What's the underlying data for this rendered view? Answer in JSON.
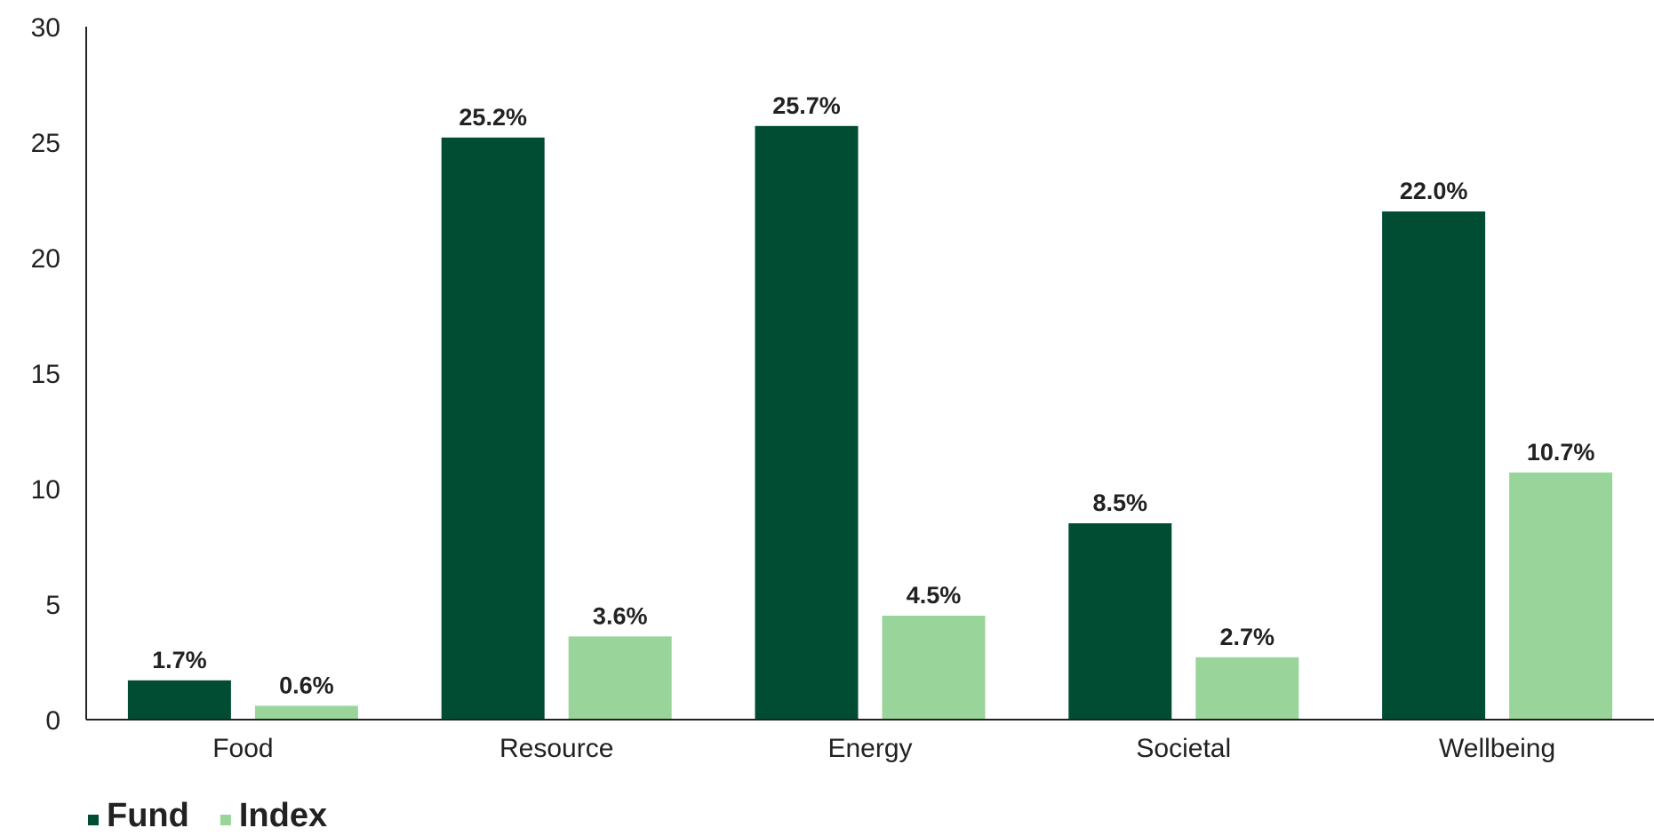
{
  "chart_data": {
    "type": "bar",
    "title": "",
    "xlabel": "",
    "ylabel": "",
    "categories": [
      "Food",
      "Resource",
      "Energy",
      "Societal",
      "Wellbeing"
    ],
    "series": [
      {
        "name": "Fund",
        "color": "#004d33",
        "values": [
          1.7,
          25.2,
          25.7,
          8.5,
          22.0
        ],
        "labels": [
          "1.7%",
          "25.2%",
          "25.7%",
          "8.5%",
          "22.0%"
        ]
      },
      {
        "name": "Index",
        "color": "#99d59a",
        "values": [
          0.6,
          3.6,
          4.5,
          2.7,
          10.7
        ],
        "labels": [
          "0.6%",
          "3.6%",
          "4.5%",
          "2.7%",
          "10.7%"
        ]
      }
    ],
    "ylim": [
      0,
      30
    ],
    "yticks": [
      "0",
      "5",
      "10",
      "15",
      "20",
      "25",
      "30"
    ],
    "grid": false,
    "legend_position": "bottom-left",
    "axis_color": "#222222"
  }
}
